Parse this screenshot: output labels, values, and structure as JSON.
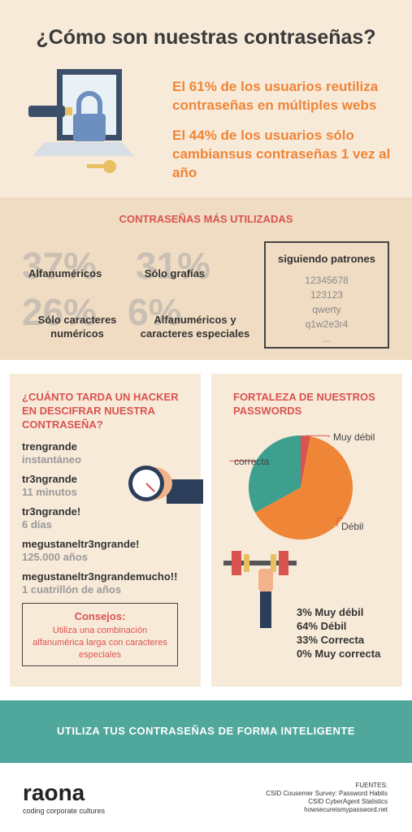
{
  "header": {
    "title": "¿Cómo son nuestras contraseñas?",
    "facts": [
      "El 61% de los usuarios reutiliza contraseñas en múltiples webs",
      "El 44% de los usuarios sólo cambiansus contraseñas 1 vez al año"
    ]
  },
  "most_used": {
    "title": "CONTRASEÑAS MÁS UTILIZADAS",
    "stats": [
      {
        "big": "37%",
        "label": "Alfanuméricos"
      },
      {
        "big": "31%",
        "label": "Sólo grafías"
      },
      {
        "big": "26%",
        "label": "Sólo caracteres numéricos"
      },
      {
        "big": "6%",
        "label": "Alfanuméricos y caracteres especiales"
      }
    ],
    "patterns": {
      "title": "siguiendo patrones",
      "items": [
        "12345678",
        "123123",
        "qwerty",
        "q1w2e3r4",
        "..."
      ]
    }
  },
  "hacker": {
    "title": "¿CUÁNTO TARDA UN HACKER EN DESCIFRAR NUESTRA CONTRASEÑA?",
    "rows": [
      {
        "password": "trengrande",
        "time": "instantáneo"
      },
      {
        "password": "tr3ngrande",
        "time": "11 minutos"
      },
      {
        "password": "tr3ngrande!",
        "time": "6 días"
      },
      {
        "password": "megustaneltr3ngrande!",
        "time": "125.000 años"
      },
      {
        "password": "megustaneltr3ngrandemucho!!",
        "time": "1 cuatrillón de años"
      }
    ],
    "tips": {
      "title": "Consejos:",
      "text": "Utiliza una combinación alfanumérica larga con caracteres especiales"
    }
  },
  "strength": {
    "title": "FORTALEZA DE NUESTROS PASSWORDS",
    "chart": {
      "type": "pie",
      "values": [
        3,
        64,
        33,
        0
      ],
      "value_labels": [
        "3% Muy débil",
        "64% Débil",
        "33% Correcta",
        "0% Muy correcta"
      ],
      "slice_labels": [
        "Muy débil",
        "Débil",
        "correcta",
        null
      ],
      "colors": [
        "#d9534f",
        "#ef8537",
        "#3d9f8e",
        "#2b6f64"
      ]
    }
  },
  "banner": "UTILIZA TUS CONTRASEÑAS DE FORMA INTELIGENTE",
  "footer": {
    "logo": "raona",
    "tagline": "coding corporate cultures",
    "sources_title": "FUENTES:",
    "sources": [
      "CSID Cousemer Survey: Password Habits",
      "CSID CyberAgent Statistics",
      "howsecureismypassword.net"
    ]
  }
}
